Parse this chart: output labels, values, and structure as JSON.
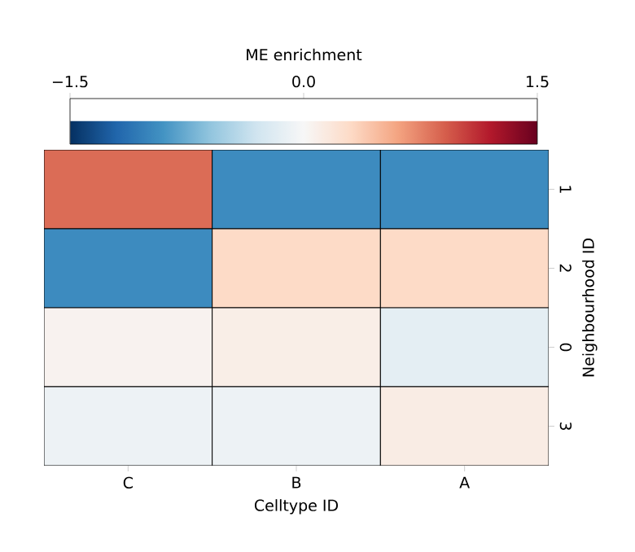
{
  "chart_data": {
    "type": "heatmap",
    "xlabel": "Celltype ID",
    "ylabel": "Neighbourhood ID",
    "clabel": "ME enrichment",
    "categories": [
      "C",
      "B",
      "A"
    ],
    "y_categories": [
      "1",
      "2",
      "0",
      "3"
    ],
    "cells": [
      [
        0.85,
        -0.95,
        -0.95
      ],
      [
        -0.95,
        0.3,
        0.3
      ],
      [
        0.05,
        0.1,
        -0.15
      ],
      [
        -0.08,
        -0.08,
        0.12
      ]
    ],
    "clim": [
      -1.5,
      1.5
    ],
    "cticks": [
      {
        "value": -1.5,
        "label": "−1.5"
      },
      {
        "value": 0,
        "label": "0.0"
      },
      {
        "value": 1.5,
        "label": "1.5"
      }
    ]
  }
}
